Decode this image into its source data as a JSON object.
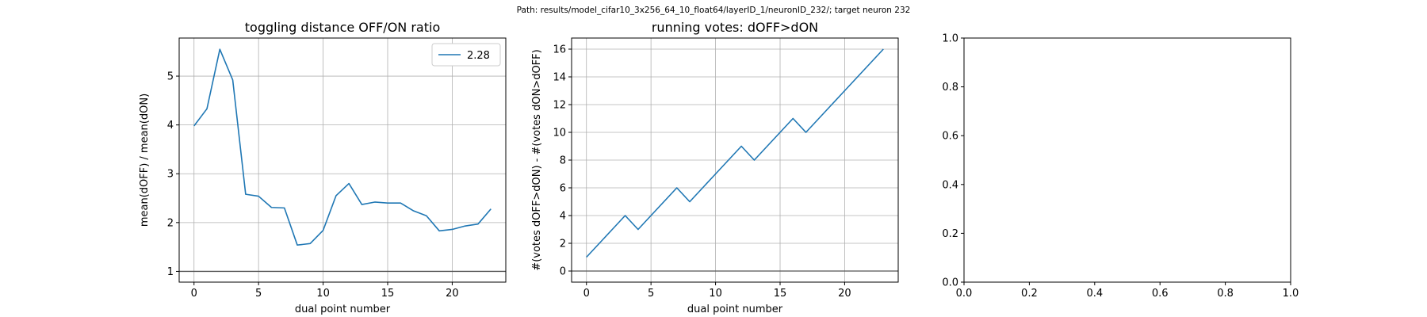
{
  "suptitle": "Path: results/model_cifar10_3x256_64_10_float64/layerID_1/neuronID_232/; target neuron 232",
  "chart_data": [
    {
      "type": "line",
      "title": "toggling distance OFF/ON ratio",
      "xlabel": "dual point number",
      "ylabel": "mean(dOFF) / mean(dON)",
      "xlim": [
        -1.15,
        24.15
      ],
      "ylim": [
        0.78,
        5.78
      ],
      "xticks": [
        0,
        5,
        10,
        15,
        20
      ],
      "yticks": [
        1,
        2,
        3,
        4,
        5
      ],
      "grid": true,
      "legend_position": "top-right",
      "hline": 1,
      "series": [
        {
          "name": "2.28",
          "color": "#1f77b4",
          "x": [
            0,
            1,
            2,
            3,
            4,
            5,
            6,
            7,
            8,
            9,
            10,
            11,
            12,
            13,
            14,
            15,
            16,
            17,
            18,
            19,
            20,
            21,
            22,
            23
          ],
          "y": [
            3.98,
            4.33,
            5.55,
            4.92,
            2.58,
            2.54,
            2.31,
            2.3,
            1.54,
            1.57,
            1.84,
            2.55,
            2.8,
            2.37,
            2.42,
            2.4,
            2.4,
            2.24,
            2.14,
            1.83,
            1.86,
            1.93,
            1.97,
            2.28
          ]
        }
      ]
    },
    {
      "type": "line",
      "title": "running votes: dOFF>dON",
      "xlabel": "dual point number",
      "ylabel": "#(votes dOFF>dON) - #(votes dON>dOFF)",
      "xlim": [
        -1.15,
        24.15
      ],
      "ylim": [
        -0.8,
        16.8
      ],
      "xticks": [
        0,
        5,
        10,
        15,
        20
      ],
      "yticks": [
        0,
        2,
        4,
        6,
        8,
        10,
        12,
        14,
        16
      ],
      "grid": true,
      "hline": 0,
      "series": [
        {
          "color": "#1f77b4",
          "x": [
            0,
            1,
            2,
            3,
            4,
            5,
            6,
            7,
            8,
            9,
            10,
            11,
            12,
            13,
            14,
            15,
            16,
            17,
            18,
            19,
            20,
            21,
            22,
            23
          ],
          "y": [
            1,
            2,
            3,
            4,
            3,
            4,
            5,
            6,
            5,
            6,
            7,
            8,
            9,
            8,
            9,
            10,
            11,
            10,
            11,
            12,
            13,
            14,
            15,
            16
          ]
        }
      ]
    },
    {
      "type": "line",
      "title": "",
      "xlim": [
        0,
        1
      ],
      "ylim": [
        0,
        1
      ],
      "xticks": [
        0.0,
        0.2,
        0.4,
        0.6,
        0.8,
        1.0
      ],
      "yticks": [
        0.0,
        0.2,
        0.4,
        0.6,
        0.8,
        1.0
      ],
      "xtick_labels": [
        "0.0",
        "0.2",
        "0.4",
        "0.6",
        "0.8",
        "1.0"
      ],
      "ytick_labels": [
        "0.0",
        "0.2",
        "0.4",
        "0.6",
        "0.8",
        "1.0"
      ],
      "grid": false,
      "series": []
    }
  ]
}
